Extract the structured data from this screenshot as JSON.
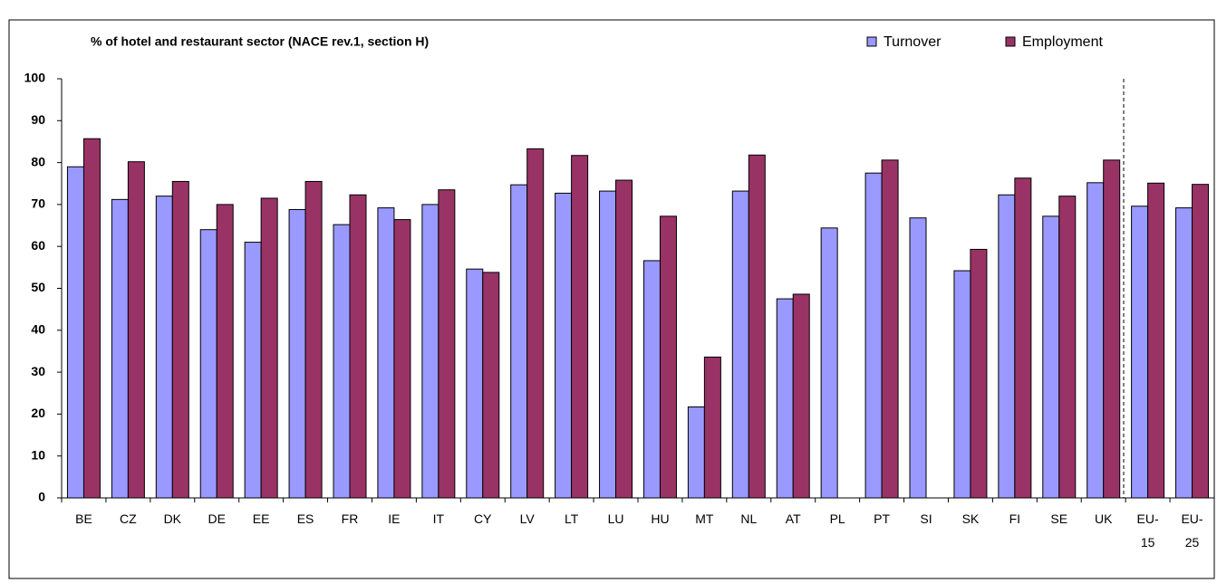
{
  "chart_data": {
    "type": "bar",
    "subtitle": "% of hotel and restaurant sector (NACE rev.1, section H)",
    "categories": [
      "BE",
      "CZ",
      "DK",
      "DE",
      "EE",
      "ES",
      "FR",
      "IE",
      "IT",
      "CY",
      "LV",
      "LT",
      "LU",
      "HU",
      "MT",
      "NL",
      "AT",
      "PL",
      "PT",
      "SI",
      "SK",
      "FI",
      "SE",
      "UK",
      "EU-15",
      "EU-25"
    ],
    "series": [
      {
        "name": "Turnover",
        "color": "#9999ff",
        "values": [
          79,
          71.2,
          72,
          64,
          61,
          68.8,
          65.2,
          69.2,
          70,
          54.6,
          74.7,
          72.7,
          73.2,
          56.6,
          21.7,
          73.2,
          47.5,
          64.4,
          77.5,
          66.8,
          54.2,
          72.3,
          67.2,
          75.2,
          69.6,
          69.2
        ]
      },
      {
        "name": "Employment",
        "color": "#993366",
        "values": [
          85.7,
          80.2,
          75.5,
          70,
          71.5,
          75.5,
          72.3,
          66.4,
          73.5,
          53.8,
          83.3,
          81.7,
          75.8,
          67.2,
          33.6,
          81.8,
          48.6,
          null,
          80.6,
          null,
          59.3,
          76.3,
          72,
          80.6,
          75.1,
          74.8
        ]
      }
    ],
    "ylim": [
      0,
      100
    ],
    "yticks": [
      0,
      10,
      20,
      30,
      40,
      50,
      60,
      70,
      80,
      90,
      100
    ],
    "grid": false,
    "legend": "top-right"
  }
}
